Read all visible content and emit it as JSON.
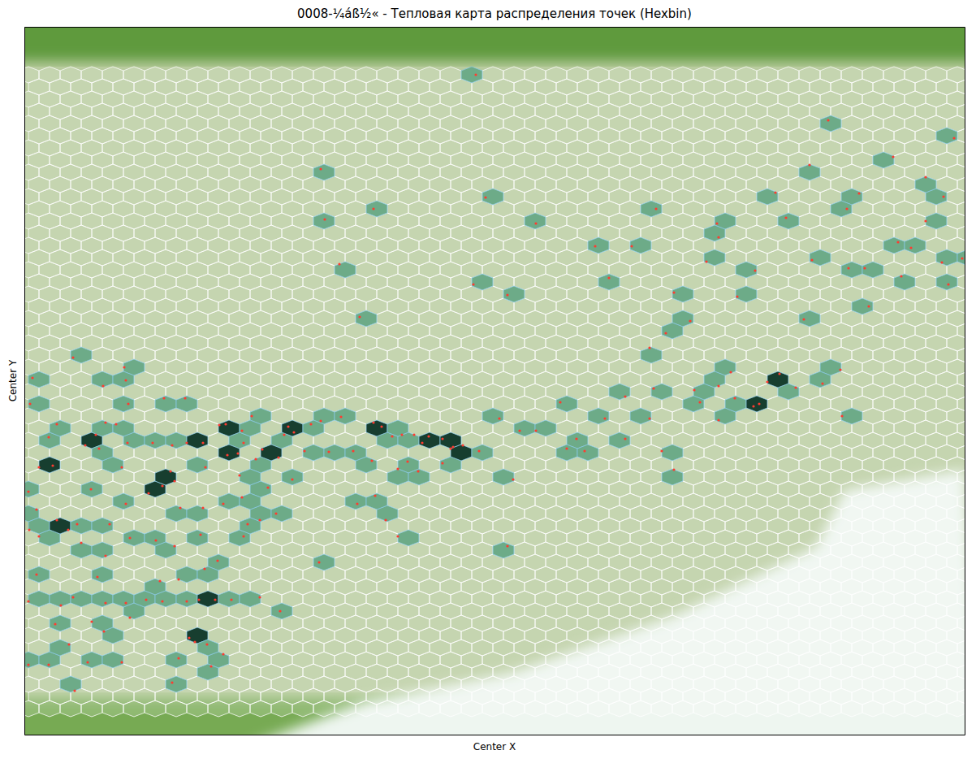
{
  "chart_data": {
    "type": "hexbin",
    "title": "0008-¼áß½« - Тепловая карта распределения точек (Hexbin)",
    "x_label": "Center X",
    "y_label": "Center Y",
    "xlim": [
      30,
      1188
    ],
    "ylim": [
      33,
      904
    ],
    "tick_labels": false,
    "color": "#ff3b30",
    "x": [
      586,
      1020,
      1175,
      997,
      1100,
      395,
      1140,
      598,
      955,
      1162,
      400,
      460,
      660,
      808,
      1043,
      1058,
      1140,
      883,
      968,
      733,
      778,
      885,
      1106,
      1122,
      418,
      1000,
      1045,
      1065,
      1160,
      1185,
      750,
      870,
      930,
      1110,
      583,
      1168,
      625,
      830,
      908,
      1070,
      443,
      990,
      850,
      820,
      800,
      90,
      40,
      153,
      155,
      127,
      900,
      960,
      1035,
      1013,
      980,
      945,
      805,
      855,
      885,
      905,
      928,
      935,
      862,
      690,
      202,
      228,
      158,
      37,
      770,
      1037,
      800,
      885,
      615,
      745,
      130,
      143,
      118,
      70,
      60,
      105,
      122,
      270,
      278,
      298,
      310,
      300,
      350,
      355,
      362,
      383,
      395,
      420,
      460,
      470,
      483,
      495,
      510,
      528,
      545,
      558,
      570,
      520,
      555,
      230,
      250,
      212,
      188,
      157,
      660,
      640,
      710,
      698,
      770,
      815,
      830,
      720,
      590,
      502,
      490,
      515,
      545,
      458,
      435,
      405,
      375,
      343,
      323,
      315,
      293,
      280,
      253,
      210,
      150,
      65,
      48,
      35,
      112,
      215,
      200,
      295,
      330,
      360,
      183,
      275,
      298,
      305,
      45,
      70,
      95,
      155,
      222,
      250,
      340,
      320,
      300,
      440,
      462,
      475,
      632,
      36,
      48,
      84,
      100,
      135,
      160,
      192,
      215,
      247,
      490,
      625,
      130,
      252,
      268,
      393,
      45,
      120,
      220,
      197,
      90,
      35,
      75,
      130,
      155,
      180,
      200,
      230,
      245,
      265,
      285,
      320,
      345,
      160,
      68,
      113,
      128,
      85,
      233,
      240,
      255,
      275,
      220,
      35,
      60,
      108,
      150,
      260,
      92,
      212
    ],
    "y": [
      92,
      148,
      170,
      203,
      193,
      208,
      218,
      243,
      237,
      242,
      270,
      257,
      275,
      257,
      257,
      238,
      272,
      275,
      268,
      303,
      303,
      292,
      298,
      305,
      325,
      320,
      330,
      330,
      323,
      318,
      342,
      322,
      333,
      340,
      350,
      350,
      363,
      360,
      365,
      377,
      390,
      393,
      395,
      410,
      428,
      440,
      465,
      452,
      468,
      475,
      458,
      460,
      455,
      472,
      477,
      470,
      478,
      480,
      475,
      490,
      500,
      497,
      495,
      495,
      490,
      490,
      497,
      497,
      488,
      512,
      515,
      517,
      515,
      515,
      520,
      522,
      535,
      522,
      538,
      548,
      552,
      523,
      522,
      530,
      512,
      545,
      535,
      525,
      532,
      522,
      518,
      513,
      520,
      525,
      537,
      535,
      535,
      537,
      540,
      550,
      548,
      545,
      552,
      545,
      545,
      548,
      545,
      545,
      530,
      530,
      540,
      552,
      540,
      555,
      578,
      555,
      555,
      568,
      577,
      580,
      570,
      567,
      555,
      556,
      555,
      563,
      553,
      565,
      558,
      560,
      575,
      580,
      575,
      573,
      575,
      605,
      602,
      592,
      598,
      585,
      600,
      590,
      607,
      620,
      612,
      645,
      627,
      640,
      645,
      620,
      625,
      625,
      632,
      640,
      660,
      620,
      610,
      640,
      590,
      652,
      660,
      652,
      668,
      645,
      662,
      665,
      672,
      658,
      660,
      672,
      684,
      700,
      690,
      692,
      707,
      710,
      713,
      715,
      735,
      740,
      745,
      742,
      742,
      738,
      740,
      740,
      738,
      738,
      738,
      735,
      752,
      760,
      768,
      765,
      777,
      793,
      785,
      790,
      793,
      805,
      810,
      818,
      818,
      815,
      815,
      820,
      850,
      840
    ]
  }
}
